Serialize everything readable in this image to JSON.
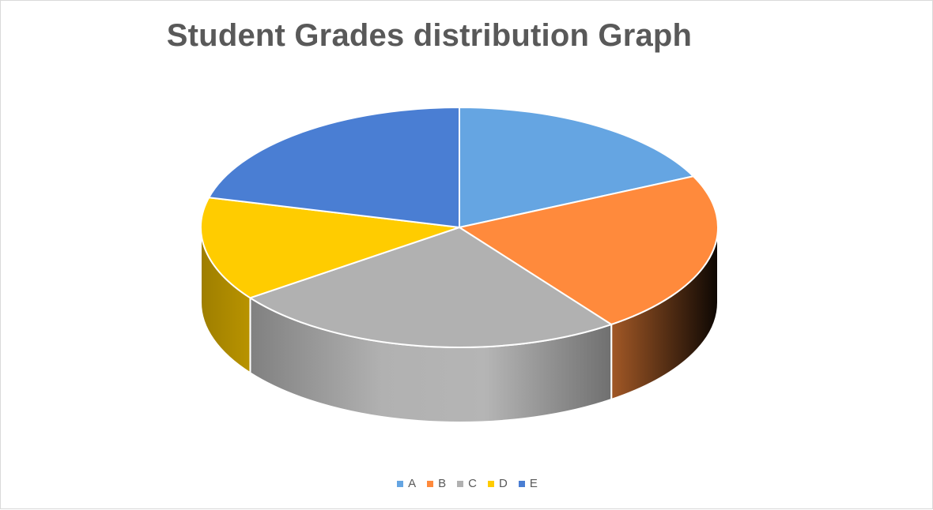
{
  "chart_data": {
    "type": "pie",
    "title": "Student Grades distribution Graph",
    "categories": [
      "A",
      "B",
      "C",
      "D",
      "E"
    ],
    "values": [
      18,
      22,
      25,
      14,
      21
    ],
    "colors": [
      "#65A5E2",
      "#FF8A3C",
      "#B1B1B1",
      "#FFCC00",
      "#4A7ED3"
    ],
    "legend_position": "bottom",
    "three_d": true
  }
}
